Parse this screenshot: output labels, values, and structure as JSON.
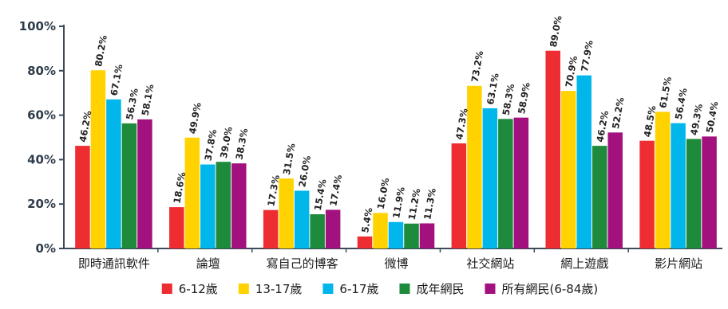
{
  "chart_data": {
    "type": "bar",
    "categories": [
      "即時通訊軟件",
      "論壇",
      "寫自己的博客",
      "微博",
      "社交網站",
      "網上遊戲",
      "影片網站"
    ],
    "series": [
      {
        "name": "6-12歲",
        "color": "#ee2d33",
        "values": [
          46.2,
          18.6,
          17.3,
          5.4,
          47.3,
          89.0,
          48.5
        ]
      },
      {
        "name": "13-17歲",
        "color": "#ffd200",
        "values": [
          80.2,
          49.9,
          31.5,
          16.0,
          73.2,
          70.9,
          61.5
        ]
      },
      {
        "name": "6-17歲",
        "color": "#00b6ea",
        "values": [
          67.1,
          37.8,
          26.0,
          11.9,
          63.1,
          77.9,
          56.4
        ]
      },
      {
        "name": "成年網民",
        "color": "#1e8a3c",
        "values": [
          56.3,
          39.0,
          15.4,
          11.2,
          58.3,
          46.2,
          49.3
        ]
      },
      {
        "name": "所有網民(6-84歲)",
        "color": "#a3117e",
        "values": [
          58.1,
          38.3,
          17.4,
          11.3,
          58.9,
          52.2,
          50.4
        ]
      }
    ],
    "value_labels": [
      [
        "46.2%",
        "18.6%",
        "17.3%",
        "5.4%",
        "47.3%",
        "89.0%",
        "48.5%"
      ],
      [
        "80.2%",
        "49.9%",
        "31.5%",
        "16.0%",
        "73.2%",
        "70.9%",
        "61.5%"
      ],
      [
        "67.1%",
        "37.8%",
        "26.0%",
        "11.9%",
        "63.1%",
        "77.9%",
        "56.4%"
      ],
      [
        "56.3%",
        "39.0%",
        "15.4%",
        "11.2%",
        "58.3%",
        "46.2%",
        "49.3%"
      ],
      [
        "58.1%",
        "38.3%",
        "17.4%",
        "11.3%",
        "58.9%",
        "52.2%",
        "50.4%"
      ]
    ],
    "y_ticks": [
      0,
      20,
      40,
      60,
      80,
      100
    ],
    "y_tick_labels": [
      "0%",
      "20%",
      "40%",
      "60%",
      "80%",
      "100%"
    ],
    "ylim": [
      0,
      100
    ],
    "grid": false,
    "legend_position": "bottom",
    "title": "",
    "xlabel": "",
    "ylabel": ""
  }
}
